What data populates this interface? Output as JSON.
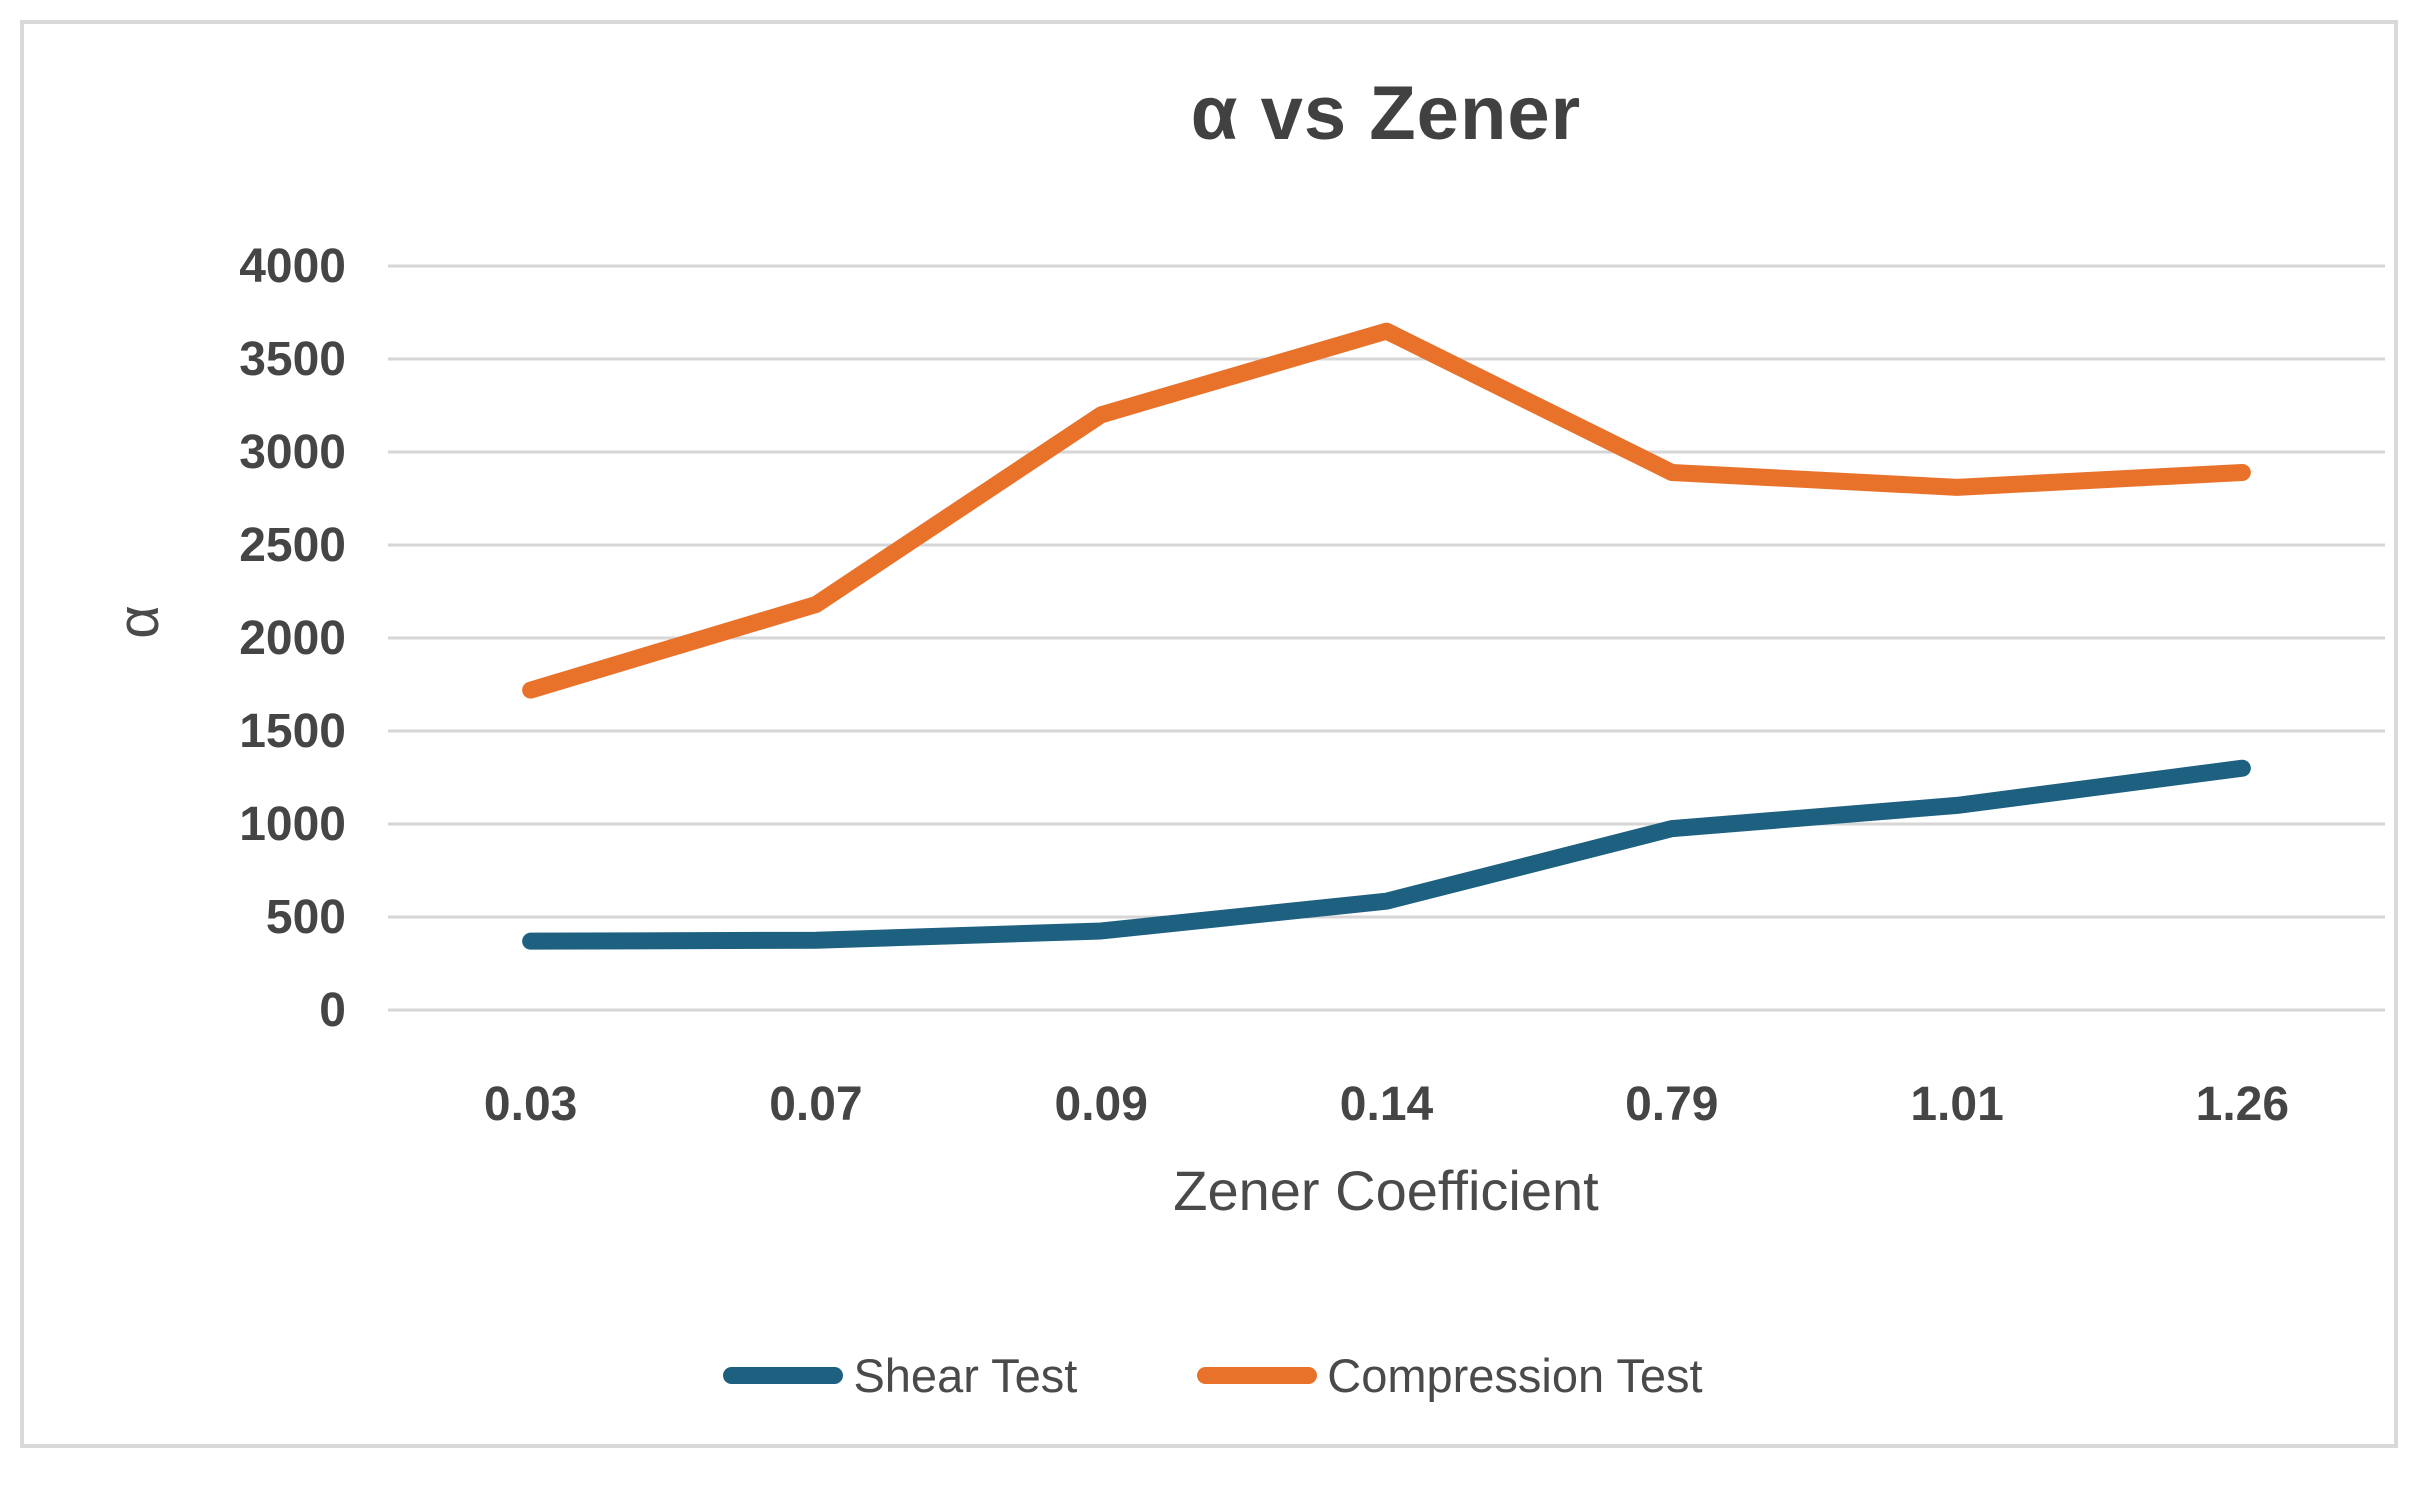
{
  "chart_data": {
    "type": "line",
    "title": "α vs Zener",
    "xlabel": "Zener Coefficient",
    "ylabel": "α",
    "categories": [
      "0.03",
      "0.07",
      "0.09",
      "0.14",
      "0.79",
      "1.01",
      "1.26"
    ],
    "series": [
      {
        "name": "Shear Test",
        "color": "#1E6080",
        "values": [
          370,
          375,
          425,
          585,
          975,
          1100,
          1300
        ]
      },
      {
        "name": "Compression Test",
        "color": "#E8722A",
        "values": [
          1720,
          2180,
          3200,
          3650,
          2890,
          2810,
          2890
        ]
      }
    ],
    "ylim": [
      0,
      4000
    ],
    "ytick_step": 500,
    "ytick_labels": [
      "0",
      "500",
      "1000",
      "1500",
      "2000",
      "2500",
      "3000",
      "3500",
      "4000"
    ],
    "grid": true,
    "legend_position": "bottom",
    "line_width": 17,
    "gridline_color": "#D6D6D6",
    "border_color": "#D9D9D9",
    "background": "#FFFFFF",
    "text_color": "#4A4A4A"
  }
}
